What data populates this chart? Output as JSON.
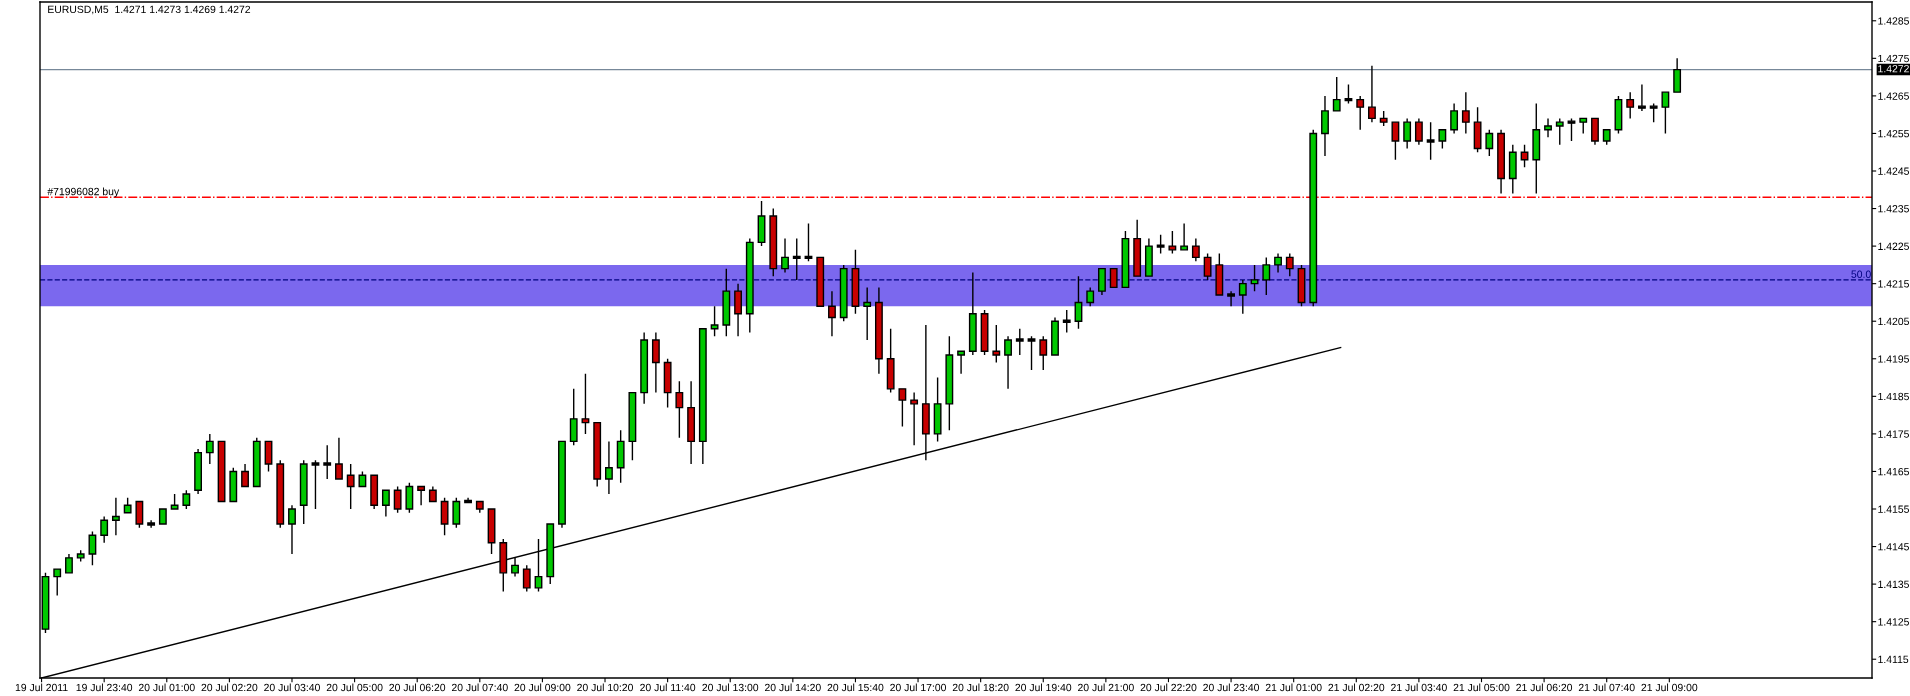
{
  "chart_data": {
    "type": "candlestick",
    "title": "EURUSD,M5  1.4271 1.4273 1.4269 1.4272",
    "series": [
      {
        "x": [
          "2011-07-19T22:25",
          "2011-07-19T22:40",
          "2011-07-19T22:55",
          "2011-07-19T23:10",
          "2011-07-19T23:25",
          "2011-07-19T23:40",
          "2011-07-19T23:55",
          "2011-07-20T00:10",
          "2011-07-20T00:25",
          "2011-07-20T00:40",
          "2011-07-20T00:55",
          "2011-07-20T01:10",
          "2011-07-20T01:25",
          "2011-07-20T01:40",
          "2011-07-20T01:55",
          "2011-07-20T02:10",
          "2011-07-20T02:25",
          "2011-07-20T02:40",
          "2011-07-20T02:55",
          "2011-07-20T03:10",
          "2011-07-20T03:25",
          "2011-07-20T03:40",
          "2011-07-20T03:55",
          "2011-07-20T04:10",
          "2011-07-20T04:25",
          "2011-07-20T04:40",
          "2011-07-20T04:55",
          "2011-07-20T05:10",
          "2011-07-20T05:25",
          "2011-07-20T05:40",
          "2011-07-20T05:55",
          "2011-07-20T06:10",
          "2011-07-20T06:25",
          "2011-07-20T06:40",
          "2011-07-20T06:55",
          "2011-07-20T07:10",
          "2011-07-20T07:25",
          "2011-07-20T07:40",
          "2011-07-20T07:55",
          "2011-07-20T08:10",
          "2011-07-20T08:25",
          "2011-07-20T08:40",
          "2011-07-20T08:55",
          "2011-07-20T09:10",
          "2011-07-20T09:25",
          "2011-07-20T09:40",
          "2011-07-20T09:55",
          "2011-07-20T10:10",
          "2011-07-20T10:25",
          "2011-07-20T10:40",
          "2011-07-20T10:55",
          "2011-07-20T11:10",
          "2011-07-20T11:25",
          "2011-07-20T11:40",
          "2011-07-20T11:55",
          "2011-07-20T12:10",
          "2011-07-20T12:25",
          "2011-07-20T12:40",
          "2011-07-20T12:55",
          "2011-07-20T13:10",
          "2011-07-20T13:25",
          "2011-07-20T13:40",
          "2011-07-20T13:55",
          "2011-07-20T14:10",
          "2011-07-20T14:25",
          "2011-07-20T14:40",
          "2011-07-20T14:55",
          "2011-07-20T15:10",
          "2011-07-20T15:25",
          "2011-07-20T15:40",
          "2011-07-20T15:55",
          "2011-07-20T16:10",
          "2011-07-20T16:25",
          "2011-07-20T16:40",
          "2011-07-20T16:55",
          "2011-07-20T17:10",
          "2011-07-20T17:25",
          "2011-07-20T17:40",
          "2011-07-20T17:55",
          "2011-07-20T18:10",
          "2011-07-20T18:25",
          "2011-07-20T18:40",
          "2011-07-20T18:55",
          "2011-07-20T19:10",
          "2011-07-20T19:25",
          "2011-07-20T19:40",
          "2011-07-20T19:55",
          "2011-07-20T20:10",
          "2011-07-20T20:25",
          "2011-07-20T20:40",
          "2011-07-20T20:55",
          "2011-07-20T21:10",
          "2011-07-20T21:25",
          "2011-07-20T21:40",
          "2011-07-20T21:55",
          "2011-07-20T22:10",
          "2011-07-20T22:25",
          "2011-07-20T22:40",
          "2011-07-20T22:55",
          "2011-07-20T23:10",
          "2011-07-20T23:25",
          "2011-07-20T23:40",
          "2011-07-20T23:55",
          "2011-07-21T00:10",
          "2011-07-21T00:25",
          "2011-07-21T00:40",
          "2011-07-21T00:55",
          "2011-07-21T01:10",
          "2011-07-21T01:25",
          "2011-07-21T01:40",
          "2011-07-21T01:55",
          "2011-07-21T02:10",
          "2011-07-21T02:25",
          "2011-07-21T02:40",
          "2011-07-21T02:55",
          "2011-07-21T03:10",
          "2011-07-21T03:25",
          "2011-07-21T03:40",
          "2011-07-21T03:55",
          "2011-07-21T04:10",
          "2011-07-21T04:25",
          "2011-07-21T04:40",
          "2011-07-21T04:55",
          "2011-07-21T05:10",
          "2011-07-21T05:25",
          "2011-07-21T05:40",
          "2011-07-21T05:55",
          "2011-07-21T06:10",
          "2011-07-21T06:25",
          "2011-07-21T06:40",
          "2011-07-21T06:55",
          "2011-07-21T07:10",
          "2011-07-21T07:25",
          "2011-07-21T07:40",
          "2011-07-21T07:55",
          "2011-07-21T08:10",
          "2011-07-21T08:25",
          "2011-07-21T08:40",
          "2011-07-21T08:55",
          "2011-07-21T09:10"
        ],
        "ohlc": [
          [
            1.4123,
            1.4138,
            1.4122,
            1.4137
          ],
          [
            1.4137,
            1.4139,
            1.4132,
            1.4139
          ],
          [
            1.4138,
            1.4143,
            1.4138,
            1.4142
          ],
          [
            1.4142,
            1.4144,
            1.4141,
            1.4143
          ],
          [
            1.4143,
            1.4149,
            1.414,
            1.4148
          ],
          [
            1.4148,
            1.4153,
            1.4146,
            1.4152
          ],
          [
            1.4152,
            1.4158,
            1.4148,
            1.4153
          ],
          [
            1.4154,
            1.4158,
            1.4154,
            1.4156
          ],
          [
            1.4157,
            1.4157,
            1.415,
            1.4151
          ],
          [
            1.4151,
            1.4152,
            1.415,
            1.4151
          ],
          [
            1.4151,
            1.4155,
            1.4151,
            1.4155
          ],
          [
            1.4155,
            1.4159,
            1.4155,
            1.4156
          ],
          [
            1.4156,
            1.416,
            1.4155,
            1.4159
          ],
          [
            1.416,
            1.4171,
            1.4159,
            1.417
          ],
          [
            1.417,
            1.4175,
            1.4167,
            1.4173
          ],
          [
            1.4173,
            1.4173,
            1.4157,
            1.4157
          ],
          [
            1.4157,
            1.4166,
            1.4157,
            1.4165
          ],
          [
            1.4165,
            1.4167,
            1.4161,
            1.4161
          ],
          [
            1.4161,
            1.4174,
            1.4161,
            1.4173
          ],
          [
            1.4173,
            1.4173,
            1.4165,
            1.4167
          ],
          [
            1.4167,
            1.4168,
            1.415,
            1.4151
          ],
          [
            1.4151,
            1.4156,
            1.4143,
            1.4155
          ],
          [
            1.4156,
            1.4168,
            1.4151,
            1.4167
          ],
          [
            1.4167,
            1.4168,
            1.4155,
            1.4167
          ],
          [
            1.4167,
            1.4172,
            1.4163,
            1.4167
          ],
          [
            1.4167,
            1.4174,
            1.4163,
            1.4163
          ],
          [
            1.4164,
            1.4167,
            1.4155,
            1.4161
          ],
          [
            1.4161,
            1.4165,
            1.4161,
            1.4164
          ],
          [
            1.4164,
            1.4164,
            1.4155,
            1.4156
          ],
          [
            1.4156,
            1.416,
            1.4153,
            1.416
          ],
          [
            1.416,
            1.4161,
            1.4154,
            1.4155
          ],
          [
            1.4155,
            1.4162,
            1.4154,
            1.4161
          ],
          [
            1.4161,
            1.4161,
            1.4156,
            1.416
          ],
          [
            1.416,
            1.4161,
            1.4157,
            1.4157
          ],
          [
            1.4157,
            1.4158,
            1.4148,
            1.4151
          ],
          [
            1.4151,
            1.4158,
            1.415,
            1.4157
          ],
          [
            1.4157,
            1.4158,
            1.4157,
            1.4157
          ],
          [
            1.4157,
            1.4157,
            1.4154,
            1.4155
          ],
          [
            1.4155,
            1.4155,
            1.4143,
            1.4146
          ],
          [
            1.4146,
            1.4147,
            1.4133,
            1.4138
          ],
          [
            1.4138,
            1.4142,
            1.4137,
            1.414
          ],
          [
            1.4139,
            1.414,
            1.4133,
            1.4134
          ],
          [
            1.4134,
            1.4147,
            1.4133,
            1.4137
          ],
          [
            1.4137,
            1.4151,
            1.4135,
            1.4151
          ],
          [
            1.4151,
            1.4173,
            1.415,
            1.4173
          ],
          [
            1.4173,
            1.4187,
            1.4172,
            1.4179
          ],
          [
            1.4179,
            1.4191,
            1.4175,
            1.4178
          ],
          [
            1.4178,
            1.4178,
            1.4161,
            1.4163
          ],
          [
            1.4163,
            1.4173,
            1.4159,
            1.4166
          ],
          [
            1.4166,
            1.4176,
            1.4162,
            1.4173
          ],
          [
            1.4173,
            1.4186,
            1.4168,
            1.4186
          ],
          [
            1.4186,
            1.4202,
            1.4183,
            1.42
          ],
          [
            1.42,
            1.4202,
            1.4186,
            1.4194
          ],
          [
            1.4194,
            1.4195,
            1.4182,
            1.4186
          ],
          [
            1.4186,
            1.4189,
            1.4174,
            1.4182
          ],
          [
            1.4182,
            1.4189,
            1.4167,
            1.4173
          ],
          [
            1.4173,
            1.4203,
            1.4167,
            1.4203
          ],
          [
            1.4203,
            1.4209,
            1.4201,
            1.4204
          ],
          [
            1.4204,
            1.4219,
            1.4201,
            1.4213
          ],
          [
            1.4213,
            1.4215,
            1.4201,
            1.4207
          ],
          [
            1.4207,
            1.4227,
            1.4202,
            1.4226
          ],
          [
            1.4226,
            1.4237,
            1.4225,
            1.4233
          ],
          [
            1.4233,
            1.4235,
            1.4217,
            1.4219
          ],
          [
            1.4219,
            1.4227,
            1.4218,
            1.4222
          ],
          [
            1.4222,
            1.4227,
            1.4216,
            1.4222
          ],
          [
            1.4222,
            1.4231,
            1.4221,
            1.4222
          ],
          [
            1.4222,
            1.4222,
            1.4209,
            1.4209
          ],
          [
            1.4209,
            1.4213,
            1.4201,
            1.4206
          ],
          [
            1.4206,
            1.422,
            1.4205,
            1.4219
          ],
          [
            1.4219,
            1.4224,
            1.4207,
            1.4209
          ],
          [
            1.4209,
            1.4214,
            1.42,
            1.421
          ],
          [
            1.421,
            1.4214,
            1.4191,
            1.4195
          ],
          [
            1.4195,
            1.4203,
            1.4186,
            1.4187
          ],
          [
            1.4187,
            1.4187,
            1.4177,
            1.4184
          ],
          [
            1.4184,
            1.4186,
            1.4172,
            1.4183
          ],
          [
            1.4183,
            1.4204,
            1.4168,
            1.4175
          ],
          [
            1.4175,
            1.419,
            1.4173,
            1.4183
          ],
          [
            1.4183,
            1.4201,
            1.4176,
            1.4196
          ],
          [
            1.4196,
            1.4197,
            1.4191,
            1.4197
          ],
          [
            1.4197,
            1.4218,
            1.4196,
            1.4207
          ],
          [
            1.4207,
            1.4208,
            1.4196,
            1.4197
          ],
          [
            1.4197,
            1.4204,
            1.4194,
            1.4196
          ],
          [
            1.4196,
            1.4201,
            1.4187,
            1.42
          ],
          [
            1.42,
            1.4203,
            1.4196,
            1.42
          ],
          [
            1.42,
            1.4201,
            1.4192,
            1.42
          ],
          [
            1.42,
            1.4201,
            1.4192,
            1.4196
          ],
          [
            1.4196,
            1.4206,
            1.4196,
            1.4205
          ],
          [
            1.4205,
            1.4208,
            1.4202,
            1.4205
          ],
          [
            1.4205,
            1.4217,
            1.4203,
            1.421
          ],
          [
            1.421,
            1.4214,
            1.4209,
            1.4213
          ],
          [
            1.4213,
            1.4219,
            1.4212,
            1.4219
          ],
          [
            1.4219,
            1.4219,
            1.4214,
            1.4214
          ],
          [
            1.4214,
            1.4229,
            1.4214,
            1.4227
          ],
          [
            1.4227,
            1.4232,
            1.4217,
            1.4217
          ],
          [
            1.4217,
            1.4227,
            1.4217,
            1.4225
          ],
          [
            1.4225,
            1.4228,
            1.4223,
            1.4225
          ],
          [
            1.4225,
            1.4229,
            1.4223,
            1.4224
          ],
          [
            1.4224,
            1.4231,
            1.4224,
            1.4225
          ],
          [
            1.4225,
            1.4227,
            1.4221,
            1.4222
          ],
          [
            1.4222,
            1.4223,
            1.4216,
            1.4217
          ],
          [
            1.422,
            1.4223,
            1.4212,
            1.4212
          ],
          [
            1.4212,
            1.4213,
            1.4209,
            1.4212
          ],
          [
            1.4212,
            1.4216,
            1.4207,
            1.4215
          ],
          [
            1.4215,
            1.422,
            1.4213,
            1.4216
          ],
          [
            1.4216,
            1.4222,
            1.4212,
            1.422
          ],
          [
            1.422,
            1.4223,
            1.4218,
            1.4222
          ],
          [
            1.4222,
            1.4223,
            1.4217,
            1.4219
          ],
          [
            1.4219,
            1.422,
            1.4209,
            1.421
          ],
          [
            1.421,
            1.4256,
            1.4209,
            1.4255
          ],
          [
            1.4255,
            1.4265,
            1.4249,
            1.4261
          ],
          [
            1.4261,
            1.427,
            1.4261,
            1.4264
          ],
          [
            1.4264,
            1.4268,
            1.4263,
            1.4264
          ],
          [
            1.4264,
            1.4265,
            1.4256,
            1.4262
          ],
          [
            1.4262,
            1.4273,
            1.4258,
            1.4259
          ],
          [
            1.4259,
            1.4261,
            1.4257,
            1.4258
          ],
          [
            1.4258,
            1.4258,
            1.4248,
            1.4253
          ],
          [
            1.4253,
            1.4259,
            1.4251,
            1.4258
          ],
          [
            1.4258,
            1.4259,
            1.4252,
            1.4253
          ],
          [
            1.4253,
            1.4258,
            1.4248,
            1.4253
          ],
          [
            1.4253,
            1.4256,
            1.4251,
            1.4256
          ],
          [
            1.4256,
            1.4263,
            1.4255,
            1.4261
          ],
          [
            1.4261,
            1.4266,
            1.4255,
            1.4258
          ],
          [
            1.4258,
            1.4262,
            1.425,
            1.4251
          ],
          [
            1.4251,
            1.4256,
            1.4249,
            1.4255
          ],
          [
            1.4255,
            1.4256,
            1.4239,
            1.4243
          ],
          [
            1.4243,
            1.4252,
            1.4239,
            1.425
          ],
          [
            1.425,
            1.4252,
            1.4246,
            1.4248
          ],
          [
            1.4248,
            1.4263,
            1.4239,
            1.4256
          ],
          [
            1.4256,
            1.4259,
            1.4254,
            1.4257
          ],
          [
            1.4257,
            1.4259,
            1.4252,
            1.4258
          ],
          [
            1.4258,
            1.4259,
            1.4253,
            1.4258
          ],
          [
            1.4258,
            1.4259,
            1.4255,
            1.4259
          ],
          [
            1.4259,
            1.4259,
            1.4252,
            1.4253
          ],
          [
            1.4253,
            1.4256,
            1.4252,
            1.4256
          ],
          [
            1.4256,
            1.4265,
            1.4255,
            1.4264
          ],
          [
            1.4264,
            1.4266,
            1.4259,
            1.4262
          ],
          [
            1.4262,
            1.4268,
            1.4261,
            1.4262
          ],
          [
            1.4262,
            1.4263,
            1.4258,
            1.4262
          ],
          [
            1.4262,
            1.4266,
            1.4255,
            1.4266
          ],
          [
            1.4266,
            1.4275,
            1.4266,
            1.4272
          ]
        ],
        "colors": [
          "#00c800",
          "#00c800",
          "#00c800",
          "#00c800",
          "#00c800",
          "#00c800",
          "#00c800",
          "#00c800",
          "#c80000",
          "#000000",
          "#00c800",
          "#00c800",
          "#00c800",
          "#00c800",
          "#00c800",
          "#c80000",
          "#00c800",
          "#c80000",
          "#00c800",
          "#c80000",
          "#c80000",
          "#00c800",
          "#00c800",
          "#000000",
          "#000000",
          "#c80000",
          "#c80000",
          "#00c800",
          "#c80000",
          "#00c800",
          "#c80000",
          "#00c800",
          "#c80000",
          "#c80000",
          "#c80000",
          "#00c800",
          "#000000",
          "#c80000",
          "#c80000",
          "#c80000",
          "#00c800",
          "#c80000",
          "#00c800",
          "#00c800",
          "#00c800",
          "#00c800",
          "#c80000",
          "#c80000",
          "#00c800",
          "#00c800",
          "#00c800",
          "#00c800",
          "#c80000",
          "#c80000",
          "#c80000",
          "#c80000",
          "#00c800",
          "#00c800",
          "#00c800",
          "#c80000",
          "#00c800",
          "#00c800",
          "#c80000",
          "#00c800",
          "#000000",
          "#000000",
          "#c80000",
          "#c80000",
          "#00c800",
          "#c80000",
          "#00c800",
          "#c80000",
          "#c80000",
          "#c80000",
          "#c80000",
          "#c80000",
          "#00c800",
          "#00c800",
          "#00c800",
          "#00c800",
          "#c80000",
          "#c80000",
          "#00c800",
          "#000000",
          "#000000",
          "#c80000",
          "#00c800",
          "#000000",
          "#00c800",
          "#00c800",
          "#00c800",
          "#c80000",
          "#00c800",
          "#c80000",
          "#00c800",
          "#000000",
          "#c80000",
          "#00c800",
          "#c80000",
          "#c80000",
          "#c80000",
          "#000000",
          "#00c800",
          "#00c800",
          "#00c800",
          "#00c800",
          "#c80000",
          "#c80000",
          "#00c800",
          "#00c800",
          "#00c800",
          "#000000",
          "#c80000",
          "#c80000",
          "#c80000",
          "#c80000",
          "#00c800",
          "#c80000",
          "#000000",
          "#00c800",
          "#00c800",
          "#c80000",
          "#c80000",
          "#00c800",
          "#c80000",
          "#00c800",
          "#c80000",
          "#00c800",
          "#00c800",
          "#00c800",
          "#000000",
          "#00c800",
          "#c80000",
          "#00c800",
          "#00c800",
          "#c80000",
          "#000000",
          "#000000",
          "#00c800",
          "#00c800"
        ]
      },
      {
        "type": "line",
        "x": [
          "2011-07-19T22:20",
          "2011-07-21T02:00"
        ],
        "values": [
          1.411,
          1.4198
        ],
        "color": "#000000"
      }
    ],
    "xlim": [
      "2011-07-19T22:18",
      "2011-07-21T13:19"
    ],
    "xticks": [
      {
        "value": "2011-07-19T22:20",
        "label": "19 Jul 2011"
      },
      {
        "value": "2011-07-19T23:40",
        "label": "19 Jul 23:40"
      },
      {
        "value": "2011-07-20T01:00",
        "label": "20 Jul 01:00"
      },
      {
        "value": "2011-07-20T02:20",
        "label": "20 Jul 02:20"
      },
      {
        "value": "2011-07-20T03:40",
        "label": "20 Jul 03:40"
      },
      {
        "value": "2011-07-20T05:00",
        "label": "20 Jul 05:00"
      },
      {
        "value": "2011-07-20T06:20",
        "label": "20 Jul 06:20"
      },
      {
        "value": "2011-07-20T07:40",
        "label": "20 Jul 07:40"
      },
      {
        "value": "2011-07-20T09:00",
        "label": "20 Jul 09:00"
      },
      {
        "value": "2011-07-20T10:20",
        "label": "20 Jul 10:20"
      },
      {
        "value": "2011-07-20T11:40",
        "label": "20 Jul 11:40"
      },
      {
        "value": "2011-07-20T13:00",
        "label": "20 Jul 13:00"
      },
      {
        "value": "2011-07-20T14:20",
        "label": "20 Jul 14:20"
      },
      {
        "value": "2011-07-20T15:40",
        "label": "20 Jul 15:40"
      },
      {
        "value": "2011-07-20T17:00",
        "label": "20 Jul 17:00"
      },
      {
        "value": "2011-07-20T18:20",
        "label": "20 Jul 18:20"
      },
      {
        "value": "2011-07-20T19:40",
        "label": "20 Jul 19:40"
      },
      {
        "value": "2011-07-20T21:00",
        "label": "20 Jul 21:00"
      },
      {
        "value": "2011-07-20T22:20",
        "label": "20 Jul 22:20"
      },
      {
        "value": "2011-07-20T23:40",
        "label": "20 Jul 23:40"
      },
      {
        "value": "2011-07-21T01:00",
        "label": "21 Jul 01:00"
      },
      {
        "value": "2011-07-21T02:20",
        "label": "21 Jul 02:20"
      },
      {
        "value": "2011-07-21T03:40",
        "label": "21 Jul 03:40"
      },
      {
        "value": "2011-07-21T05:00",
        "label": "21 Jul 05:00"
      },
      {
        "value": "2011-07-21T06:20",
        "label": "21 Jul 06:20"
      },
      {
        "value": "2011-07-21T07:40",
        "label": "21 Jul 07:40"
      },
      {
        "value": "2011-07-21T09:00",
        "label": "21 Jul 09:00"
      }
    ],
    "ylim": [
      1.411,
      1.429
    ],
    "yticks": [
      1.4285,
      1.4275,
      1.4265,
      1.4255,
      1.4245,
      1.4235,
      1.4225,
      1.4215,
      1.4205,
      1.4195,
      1.4185,
      1.4175,
      1.4165,
      1.4155,
      1.4145,
      1.4135,
      1.4125,
      1.4115
    ],
    "ref_lines": [
      {
        "axis": "y",
        "value": 1.4272,
        "label": "1.4272",
        "color": "#778899",
        "line_style": "solid"
      },
      {
        "axis": "y",
        "value": 1.4238,
        "label": "#71996082 buy",
        "color": "#ff0000",
        "line_style": "dashdot"
      },
      {
        "axis": "y",
        "value": 1.4216,
        "color": "#000080",
        "line_style": "dashed"
      }
    ],
    "bands": [
      {
        "axis": "y",
        "from": 1.4209,
        "to": 1.422,
        "color": "#7b68ee"
      }
    ],
    "annotations": [
      {
        "text": "50.0",
        "x": "2011-07-21T13:18",
        "y": 1.4216
      }
    ]
  }
}
